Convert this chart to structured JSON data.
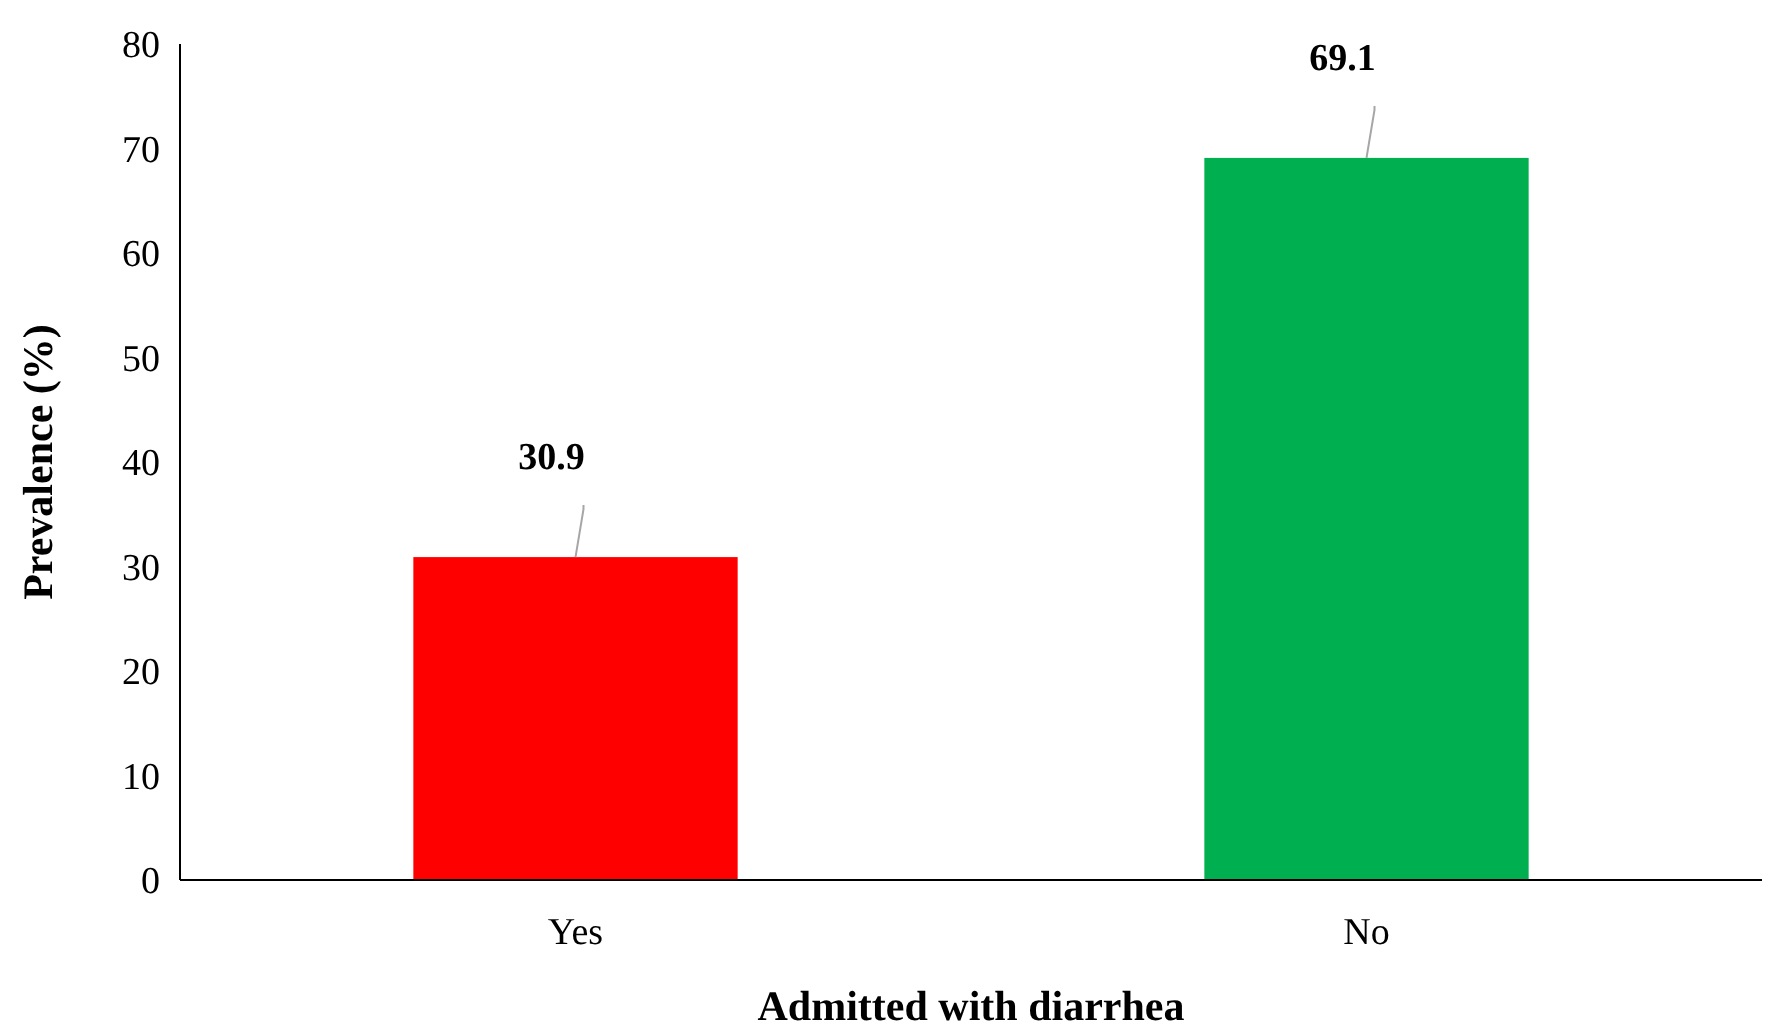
{
  "chart_data": {
    "type": "bar",
    "xlabel": "Admitted with diarrhea",
    "ylabel": "Prevalence (%)",
    "categories": [
      "Yes",
      "No"
    ],
    "values": [
      30.9,
      69.1
    ],
    "colors": [
      "#ff0000",
      "#00b050"
    ],
    "ylim": [
      0,
      80
    ],
    "yticks": [
      0,
      10,
      20,
      30,
      40,
      50,
      60,
      70,
      80
    ],
    "data_labels": true
  }
}
